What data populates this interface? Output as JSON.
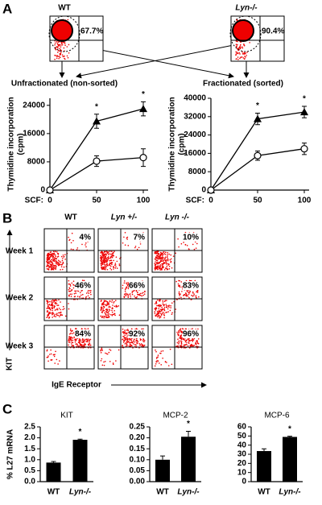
{
  "panel_labels": {
    "a": "A",
    "b": "B",
    "c": "C"
  },
  "sort_panel": {
    "plots": [
      {
        "title": "WT",
        "percent": "67.7%"
      },
      {
        "title": "Lyn-/-",
        "percent": "90.4%"
      }
    ],
    "labels": [
      "Unfractionated (non-sorted)",
      "Fractionated (sorted)"
    ]
  },
  "flow_panel": {
    "columns": [
      "WT",
      "Lyn +/-",
      "Lyn -/-"
    ],
    "rows": [
      "Week 1",
      "Week 2",
      "Week 3"
    ],
    "percents": [
      [
        "4%",
        "7%",
        "10%"
      ],
      [
        "46%",
        "66%",
        "83%"
      ],
      [
        "84%",
        "92%",
        "96%"
      ]
    ],
    "y_axis": "KIT",
    "x_axis": "IgE Receptor"
  },
  "chart_data": [
    {
      "type": "line",
      "ylabel": [
        "Thymidine incorporation",
        "(cpm)"
      ],
      "xlabel": "SCF:",
      "x": [
        0,
        50,
        100
      ],
      "xlim": [
        0,
        100
      ],
      "xticks": [
        0,
        50,
        100
      ],
      "ylim": [
        0,
        26000
      ],
      "yticks": [
        0,
        8000,
        16000,
        24000
      ],
      "series": [
        {
          "marker": "triangle",
          "color": "#000000",
          "values": [
            0,
            19500,
            23000
          ],
          "errors": [
            0,
            2000,
            2000
          ]
        },
        {
          "marker": "open-circle",
          "color": "#000000",
          "values": [
            0,
            8200,
            9200
          ],
          "errors": [
            0,
            1500,
            2500
          ]
        }
      ],
      "annotations": [
        {
          "x": 50,
          "text": "*"
        },
        {
          "x": 100,
          "text": "*"
        }
      ]
    },
    {
      "type": "line",
      "ylabel": [
        "Thymidine incorporation",
        "(cpm)"
      ],
      "xlabel": "SCF:",
      "x": [
        0,
        50,
        100
      ],
      "xlim": [
        0,
        100
      ],
      "xticks": [
        0,
        50,
        100
      ],
      "ylim": [
        0,
        40000
      ],
      "yticks": [
        0,
        8000,
        16000,
        24000,
        32000,
        40000
      ],
      "series": [
        {
          "marker": "triangle",
          "color": "#000000",
          "values": [
            0,
            31000,
            34000
          ],
          "errors": [
            0,
            2500,
            2500
          ]
        },
        {
          "marker": "open-circle",
          "color": "#000000",
          "values": [
            0,
            15000,
            18000
          ],
          "errors": [
            0,
            2000,
            2500
          ]
        }
      ],
      "annotations": [
        {
          "x": 50,
          "text": "*"
        },
        {
          "x": 100,
          "text": "*"
        }
      ]
    },
    {
      "type": "bar",
      "title": "KIT",
      "ylabel": "% L27 mRNA",
      "categories": [
        "WT",
        "Lyn-/-"
      ],
      "values": [
        0.87,
        1.91
      ],
      "errors": [
        0.05,
        0.03
      ],
      "color": "#000000",
      "ylim": [
        0,
        2.5
      ],
      "yticks": [
        {
          "value": 0,
          "label": "0.0"
        },
        {
          "value": 0.5,
          "label": "0.5"
        },
        {
          "value": 1,
          "label": "1.0"
        },
        {
          "value": 1.5,
          "label": "1.5"
        },
        {
          "value": 2,
          "label": "2.0"
        },
        {
          "value": 2.5,
          "label": "2.5"
        }
      ],
      "annotations": [
        {
          "category": "Lyn-/-",
          "text": "*"
        }
      ]
    },
    {
      "type": "bar",
      "title": "MCP-2",
      "categories": [
        "WT",
        "Lyn-/-"
      ],
      "values": [
        0.1,
        0.205
      ],
      "errors": [
        0.017,
        0.025
      ],
      "color": "#000000",
      "ylim": [
        0,
        0.25
      ],
      "yticks": [
        {
          "value": 0,
          "label": "0.00"
        },
        {
          "value": 0.05,
          "label": "0.05"
        },
        {
          "value": 0.1,
          "label": "0.10"
        },
        {
          "value": 0.15,
          "label": "0.15"
        },
        {
          "value": 0.2,
          "label": "0.20"
        },
        {
          "value": 0.25,
          "label": "0.25"
        }
      ],
      "annotations": [
        {
          "category": "Lyn-/-",
          "text": "*"
        }
      ]
    },
    {
      "type": "bar",
      "title": "MCP-6",
      "categories": [
        "WT",
        "Lyn-/-"
      ],
      "values": [
        33.5,
        49
      ],
      "errors": [
        2.5,
        0.7
      ],
      "color": "#000000",
      "ylim": [
        0,
        60
      ],
      "yticks": [
        0,
        10,
        20,
        30,
        40,
        50,
        60
      ],
      "annotations": [
        {
          "category": "Lyn-/-",
          "text": "*"
        }
      ]
    }
  ]
}
